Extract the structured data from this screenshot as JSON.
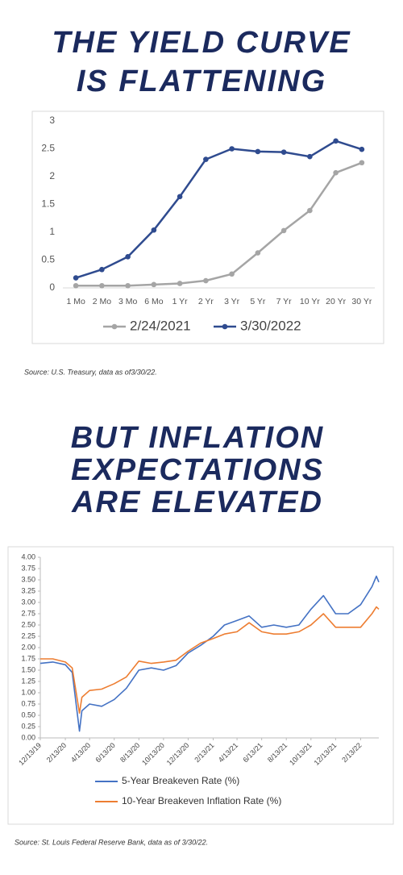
{
  "chart_data": [
    {
      "type": "line",
      "title": [
        "THE YIELD CURVE",
        "IS FLATTENING"
      ],
      "categories": [
        "1 Mo",
        "2 Mo",
        "3 Mo",
        "6 Mo",
        "1 Yr",
        "2 Yr",
        "3 Yr",
        "5 Yr",
        "7 Yr",
        "10 Yr",
        "20 Yr",
        "30 Yr"
      ],
      "series": [
        {
          "name": "2/24/2021",
          "color": "#a5a5a5",
          "values": [
            0.04,
            0.04,
            0.04,
            0.06,
            0.08,
            0.13,
            0.25,
            0.63,
            1.03,
            1.39,
            2.07,
            2.25
          ]
        },
        {
          "name": "3/30/2022",
          "color": "#2f4b8f",
          "values": [
            0.18,
            0.33,
            0.56,
            1.04,
            1.64,
            2.31,
            2.5,
            2.45,
            2.44,
            2.36,
            2.64,
            2.49
          ]
        }
      ],
      "ylim": [
        0,
        3
      ],
      "yticks": [
        0,
        0.5,
        1,
        1.5,
        2,
        2.5,
        3
      ],
      "grid": false,
      "markers": true,
      "legend": "bottom",
      "source": "Source: U.S. Treasury, data as of3/30/22."
    },
    {
      "type": "line",
      "title": [
        "BUT INFLATION",
        "EXPECTATIONS",
        "ARE ELEVATED"
      ],
      "x": [
        "12/13/19",
        "1/13/20",
        "2/13/20",
        "3/1/20",
        "3/19/20",
        "3/25/20",
        "4/13/20",
        "5/13/20",
        "6/13/20",
        "7/13/20",
        "8/13/20",
        "9/13/20",
        "10/13/20",
        "11/13/20",
        "12/13/20",
        "1/13/21",
        "2/13/21",
        "3/13/21",
        "4/13/21",
        "5/13/21",
        "6/13/21",
        "7/13/21",
        "8/13/21",
        "9/13/21",
        "10/13/21",
        "11/13/21",
        "12/13/21",
        "1/13/22",
        "2/13/22",
        "3/13/22",
        "3/24/22",
        "3/30/22"
      ],
      "series": [
        {
          "name": "5-Year Breakeven Rate (%)",
          "color": "#4472c4",
          "values": [
            1.65,
            1.68,
            1.62,
            1.45,
            0.15,
            0.6,
            0.75,
            0.7,
            0.85,
            1.1,
            1.5,
            1.55,
            1.5,
            1.6,
            1.88,
            2.05,
            2.25,
            2.5,
            2.6,
            2.7,
            2.45,
            2.5,
            2.45,
            2.5,
            2.85,
            3.15,
            2.75,
            2.75,
            2.95,
            3.35,
            3.58,
            3.45
          ]
        },
        {
          "name": "10-Year Breakeven Inflation Rate (%)",
          "color": "#ed7d31",
          "values": [
            1.75,
            1.75,
            1.68,
            1.55,
            0.55,
            0.9,
            1.05,
            1.08,
            1.2,
            1.35,
            1.7,
            1.65,
            1.68,
            1.72,
            1.92,
            2.1,
            2.2,
            2.3,
            2.35,
            2.55,
            2.35,
            2.3,
            2.3,
            2.35,
            2.5,
            2.75,
            2.45,
            2.45,
            2.45,
            2.75,
            2.9,
            2.85
          ]
        }
      ],
      "xlim": [
        "12/13/19",
        "3/30/22"
      ],
      "xticks": [
        "12/13/19",
        "2/13/20",
        "4/13/20",
        "6/13/20",
        "8/13/20",
        "10/13/20",
        "12/13/20",
        "2/13/21",
        "4/13/21",
        "6/13/21",
        "8/13/21",
        "10/13/21",
        "12/13/21",
        "2/13/22"
      ],
      "ylim": [
        0,
        4
      ],
      "yticks": [
        {
          "value": 0,
          "label": "0.00"
        },
        {
          "value": 0.25,
          "label": "0.25"
        },
        {
          "value": 0.5,
          "label": "0.50"
        },
        {
          "value": 0.75,
          "label": "0.75"
        },
        {
          "value": 1,
          "label": "1.00"
        },
        {
          "value": 1.25,
          "label": "1.25"
        },
        {
          "value": 1.5,
          "label": "1.50"
        },
        {
          "value": 1.75,
          "label": "1.75"
        },
        {
          "value": 2,
          "label": "2.00"
        },
        {
          "value": 2.25,
          "label": "2.25"
        },
        {
          "value": 2.5,
          "label": "2.50"
        },
        {
          "value": 2.75,
          "label": "2.75"
        },
        {
          "value": 3,
          "label": "3.00"
        },
        {
          "value": 3.25,
          "label": "3.25"
        },
        {
          "value": 3.5,
          "label": "3.50"
        },
        {
          "value": 3.75,
          "label": "3.75"
        },
        {
          "value": 4,
          "label": "4.00"
        }
      ],
      "grid": false,
      "markers": false,
      "legend": "bottom",
      "source": "Source: St. Louis Federal Reserve Bank, data as of 3/30/22."
    }
  ]
}
